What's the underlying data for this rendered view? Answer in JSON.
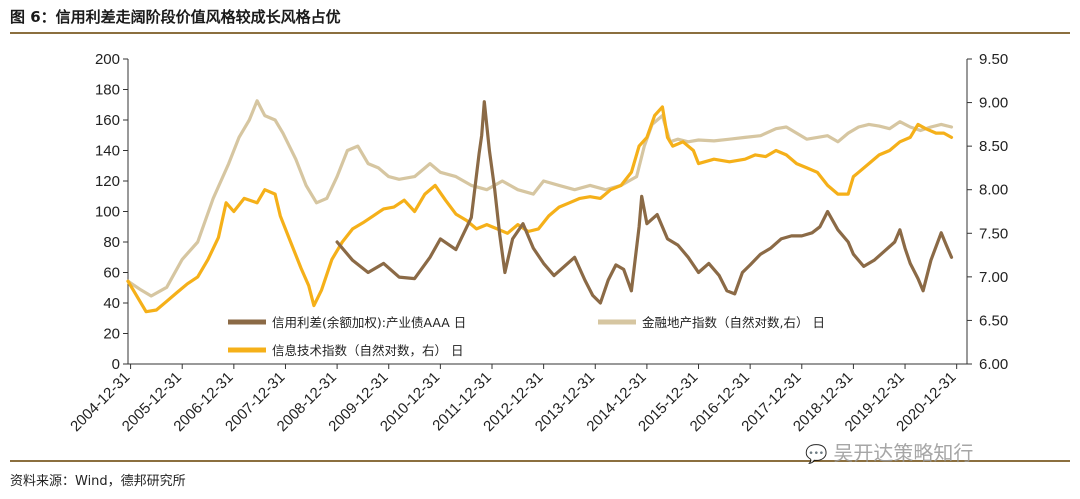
{
  "header": {
    "figure_title": "图 6：信用利差走阔阶段价值风格较成长风格占优"
  },
  "footer": {
    "source": "资料来源：Wind，德邦研究所"
  },
  "watermark": {
    "text": "吴开达策略知行",
    "icon": "wechat-icon"
  },
  "colors": {
    "accent_rule": "#8b6f3f",
    "series_spread": "#8b6a46",
    "series_realestate": "#d6c6a1",
    "series_it": "#f5b019"
  },
  "chart_data": {
    "type": "line",
    "x_labels": [
      "2004-12-31",
      "2005-12-31",
      "2006-12-31",
      "2007-12-31",
      "2008-12-31",
      "2009-12-31",
      "2010-12-31",
      "2011-12-31",
      "2012-12-31",
      "2013-12-31",
      "2014-12-31",
      "2015-12-31",
      "2016-12-31",
      "2017-12-31",
      "2018-12-31",
      "2019-12-31",
      "2020-12-31"
    ],
    "left_axis": {
      "ylim": [
        0,
        200
      ],
      "ticks": [
        "0",
        "20",
        "40",
        "60",
        "80",
        "100",
        "120",
        "140",
        "160",
        "180",
        "200"
      ]
    },
    "right_axis": {
      "ylim": [
        6.0,
        9.5
      ],
      "ticks": [
        "6.00",
        "6.50",
        "7.00",
        "7.50",
        "8.00",
        "8.50",
        "9.00",
        "9.50"
      ]
    },
    "grid": false,
    "legend_position": "bottom-inside",
    "series": [
      {
        "name": "信用利差(余额加权):产业债AAA 日",
        "axis": "left",
        "color": "#8b6a46",
        "points": [
          [
            2009.0,
            80
          ],
          [
            2009.3,
            68
          ],
          [
            2009.6,
            60
          ],
          [
            2009.9,
            66
          ],
          [
            2010.2,
            57
          ],
          [
            2010.5,
            56
          ],
          [
            2010.8,
            70
          ],
          [
            2011.0,
            82
          ],
          [
            2011.3,
            75
          ],
          [
            2011.6,
            96
          ],
          [
            2011.75,
            138
          ],
          [
            2011.8,
            150
          ],
          [
            2011.85,
            172
          ],
          [
            2011.95,
            140
          ],
          [
            2012.05,
            115
          ],
          [
            2012.15,
            85
          ],
          [
            2012.25,
            60
          ],
          [
            2012.4,
            82
          ],
          [
            2012.6,
            92
          ],
          [
            2012.8,
            76
          ],
          [
            2013.0,
            66
          ],
          [
            2013.2,
            58
          ],
          [
            2013.4,
            64
          ],
          [
            2013.6,
            70
          ],
          [
            2013.8,
            55
          ],
          [
            2013.95,
            45
          ],
          [
            2014.1,
            40
          ],
          [
            2014.25,
            55
          ],
          [
            2014.4,
            65
          ],
          [
            2014.55,
            62
          ],
          [
            2014.7,
            48
          ],
          [
            2014.85,
            90
          ],
          [
            2014.9,
            110
          ],
          [
            2015.0,
            92
          ],
          [
            2015.2,
            98
          ],
          [
            2015.4,
            82
          ],
          [
            2015.6,
            78
          ],
          [
            2015.8,
            70
          ],
          [
            2016.0,
            60
          ],
          [
            2016.2,
            66
          ],
          [
            2016.4,
            58
          ],
          [
            2016.55,
            48
          ],
          [
            2016.7,
            46
          ],
          [
            2016.85,
            60
          ],
          [
            2017.0,
            65
          ],
          [
            2017.2,
            72
          ],
          [
            2017.4,
            76
          ],
          [
            2017.6,
            82
          ],
          [
            2017.8,
            84
          ],
          [
            2018.0,
            84
          ],
          [
            2018.2,
            86
          ],
          [
            2018.35,
            90
          ],
          [
            2018.5,
            100
          ],
          [
            2018.7,
            88
          ],
          [
            2018.9,
            80
          ],
          [
            2019.0,
            72
          ],
          [
            2019.2,
            64
          ],
          [
            2019.4,
            68
          ],
          [
            2019.6,
            74
          ],
          [
            2019.8,
            80
          ],
          [
            2019.9,
            88
          ],
          [
            2020.0,
            76
          ],
          [
            2020.1,
            66
          ],
          [
            2020.25,
            56
          ],
          [
            2020.35,
            48
          ],
          [
            2020.5,
            68
          ],
          [
            2020.7,
            86
          ],
          [
            2020.8,
            78
          ],
          [
            2020.9,
            70
          ]
        ]
      },
      {
        "name": "金融地产指数（自然对数,右） 日",
        "axis": "right",
        "color": "#d6c6a1",
        "points": [
          [
            2004.95,
            6.95
          ],
          [
            2005.2,
            6.85
          ],
          [
            2005.4,
            6.78
          ],
          [
            2005.7,
            6.88
          ],
          [
            2006.0,
            7.2
          ],
          [
            2006.3,
            7.4
          ],
          [
            2006.6,
            7.9
          ],
          [
            2006.9,
            8.3
          ],
          [
            2007.1,
            8.6
          ],
          [
            2007.3,
            8.8
          ],
          [
            2007.45,
            9.02
          ],
          [
            2007.6,
            8.85
          ],
          [
            2007.8,
            8.8
          ],
          [
            2007.95,
            8.65
          ],
          [
            2008.2,
            8.35
          ],
          [
            2008.4,
            8.05
          ],
          [
            2008.6,
            7.85
          ],
          [
            2008.8,
            7.9
          ],
          [
            2009.0,
            8.15
          ],
          [
            2009.2,
            8.45
          ],
          [
            2009.4,
            8.5
          ],
          [
            2009.6,
            8.3
          ],
          [
            2009.8,
            8.25
          ],
          [
            2010.0,
            8.15
          ],
          [
            2010.2,
            8.12
          ],
          [
            2010.5,
            8.15
          ],
          [
            2010.8,
            8.3
          ],
          [
            2011.0,
            8.2
          ],
          [
            2011.3,
            8.15
          ],
          [
            2011.6,
            8.05
          ],
          [
            2011.9,
            8.0
          ],
          [
            2012.2,
            8.1
          ],
          [
            2012.5,
            8.0
          ],
          [
            2012.8,
            7.95
          ],
          [
            2013.0,
            8.1
          ],
          [
            2013.3,
            8.05
          ],
          [
            2013.6,
            8.0
          ],
          [
            2013.9,
            8.05
          ],
          [
            2014.2,
            8.0
          ],
          [
            2014.5,
            8.05
          ],
          [
            2014.8,
            8.15
          ],
          [
            2014.95,
            8.5
          ],
          [
            2015.1,
            8.75
          ],
          [
            2015.3,
            8.85
          ],
          [
            2015.45,
            8.55
          ],
          [
            2015.6,
            8.58
          ],
          [
            2015.8,
            8.55
          ],
          [
            2016.0,
            8.57
          ],
          [
            2016.3,
            8.56
          ],
          [
            2016.6,
            8.58
          ],
          [
            2016.9,
            8.6
          ],
          [
            2017.2,
            8.62
          ],
          [
            2017.5,
            8.7
          ],
          [
            2017.7,
            8.72
          ],
          [
            2017.9,
            8.65
          ],
          [
            2018.1,
            8.58
          ],
          [
            2018.3,
            8.6
          ],
          [
            2018.5,
            8.62
          ],
          [
            2018.7,
            8.55
          ],
          [
            2018.9,
            8.65
          ],
          [
            2019.1,
            8.72
          ],
          [
            2019.3,
            8.75
          ],
          [
            2019.5,
            8.73
          ],
          [
            2019.7,
            8.7
          ],
          [
            2019.9,
            8.78
          ],
          [
            2020.1,
            8.72
          ],
          [
            2020.3,
            8.68
          ],
          [
            2020.5,
            8.72
          ],
          [
            2020.7,
            8.75
          ],
          [
            2020.9,
            8.72
          ]
        ]
      },
      {
        "name": "信息技术指数（自然对数，右） 日",
        "axis": "right",
        "color": "#f5b019",
        "points": [
          [
            2004.95,
            6.95
          ],
          [
            2005.15,
            6.75
          ],
          [
            2005.3,
            6.6
          ],
          [
            2005.5,
            6.62
          ],
          [
            2005.7,
            6.72
          ],
          [
            2005.9,
            6.82
          ],
          [
            2006.1,
            6.92
          ],
          [
            2006.3,
            7.0
          ],
          [
            2006.5,
            7.2
          ],
          [
            2006.7,
            7.45
          ],
          [
            2006.85,
            7.85
          ],
          [
            2007.0,
            7.75
          ],
          [
            2007.2,
            7.9
          ],
          [
            2007.45,
            7.85
          ],
          [
            2007.6,
            8.0
          ],
          [
            2007.8,
            7.95
          ],
          [
            2007.9,
            7.7
          ],
          [
            2008.1,
            7.4
          ],
          [
            2008.3,
            7.1
          ],
          [
            2008.45,
            6.9
          ],
          [
            2008.55,
            6.67
          ],
          [
            2008.7,
            6.85
          ],
          [
            2008.9,
            7.2
          ],
          [
            2009.1,
            7.4
          ],
          [
            2009.3,
            7.55
          ],
          [
            2009.5,
            7.62
          ],
          [
            2009.7,
            7.7
          ],
          [
            2009.9,
            7.78
          ],
          [
            2010.1,
            7.8
          ],
          [
            2010.3,
            7.88
          ],
          [
            2010.5,
            7.75
          ],
          [
            2010.7,
            7.95
          ],
          [
            2010.9,
            8.05
          ],
          [
            2011.1,
            7.88
          ],
          [
            2011.3,
            7.72
          ],
          [
            2011.5,
            7.65
          ],
          [
            2011.7,
            7.55
          ],
          [
            2011.9,
            7.6
          ],
          [
            2012.1,
            7.55
          ],
          [
            2012.3,
            7.5
          ],
          [
            2012.5,
            7.6
          ],
          [
            2012.7,
            7.52
          ],
          [
            2012.9,
            7.55
          ],
          [
            2013.1,
            7.7
          ],
          [
            2013.3,
            7.8
          ],
          [
            2013.5,
            7.85
          ],
          [
            2013.7,
            7.9
          ],
          [
            2013.9,
            7.92
          ],
          [
            2014.1,
            7.9
          ],
          [
            2014.3,
            8.0
          ],
          [
            2014.5,
            8.05
          ],
          [
            2014.7,
            8.2
          ],
          [
            2014.85,
            8.5
          ],
          [
            2015.0,
            8.6
          ],
          [
            2015.15,
            8.85
          ],
          [
            2015.3,
            8.95
          ],
          [
            2015.4,
            8.6
          ],
          [
            2015.5,
            8.5
          ],
          [
            2015.7,
            8.55
          ],
          [
            2015.9,
            8.45
          ],
          [
            2016.0,
            8.3
          ],
          [
            2016.3,
            8.35
          ],
          [
            2016.6,
            8.32
          ],
          [
            2016.9,
            8.35
          ],
          [
            2017.1,
            8.4
          ],
          [
            2017.3,
            8.38
          ],
          [
            2017.5,
            8.45
          ],
          [
            2017.7,
            8.4
          ],
          [
            2017.9,
            8.3
          ],
          [
            2018.1,
            8.25
          ],
          [
            2018.3,
            8.2
          ],
          [
            2018.5,
            8.05
          ],
          [
            2018.7,
            7.95
          ],
          [
            2018.9,
            7.95
          ],
          [
            2019.0,
            8.15
          ],
          [
            2019.1,
            8.2
          ],
          [
            2019.3,
            8.3
          ],
          [
            2019.5,
            8.4
          ],
          [
            2019.7,
            8.45
          ],
          [
            2019.9,
            8.55
          ],
          [
            2020.1,
            8.6
          ],
          [
            2020.25,
            8.75
          ],
          [
            2020.4,
            8.7
          ],
          [
            2020.6,
            8.65
          ],
          [
            2020.75,
            8.65
          ],
          [
            2020.9,
            8.6
          ]
        ]
      }
    ]
  }
}
